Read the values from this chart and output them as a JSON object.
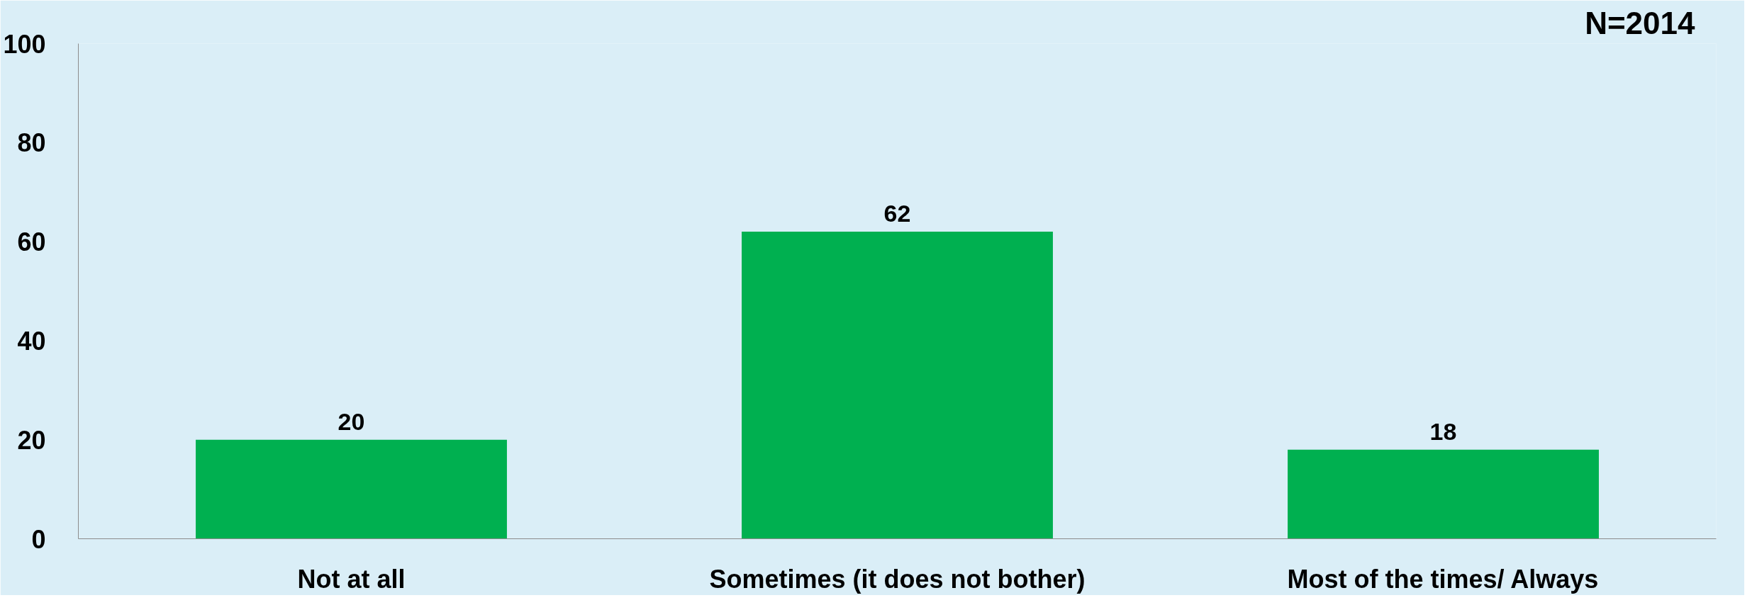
{
  "chart_data": {
    "type": "bar",
    "categories": [
      "Not at all",
      "Sometimes (it does not bother)",
      "Most of the times/ Always"
    ],
    "values": [
      20,
      62,
      18
    ],
    "color": "#00b050",
    "ylim": [
      0,
      100
    ],
    "yticks": [
      0,
      20,
      40,
      60,
      80,
      100
    ],
    "grid": false,
    "data_labels": true,
    "annotations": [
      "N=2014"
    ]
  }
}
